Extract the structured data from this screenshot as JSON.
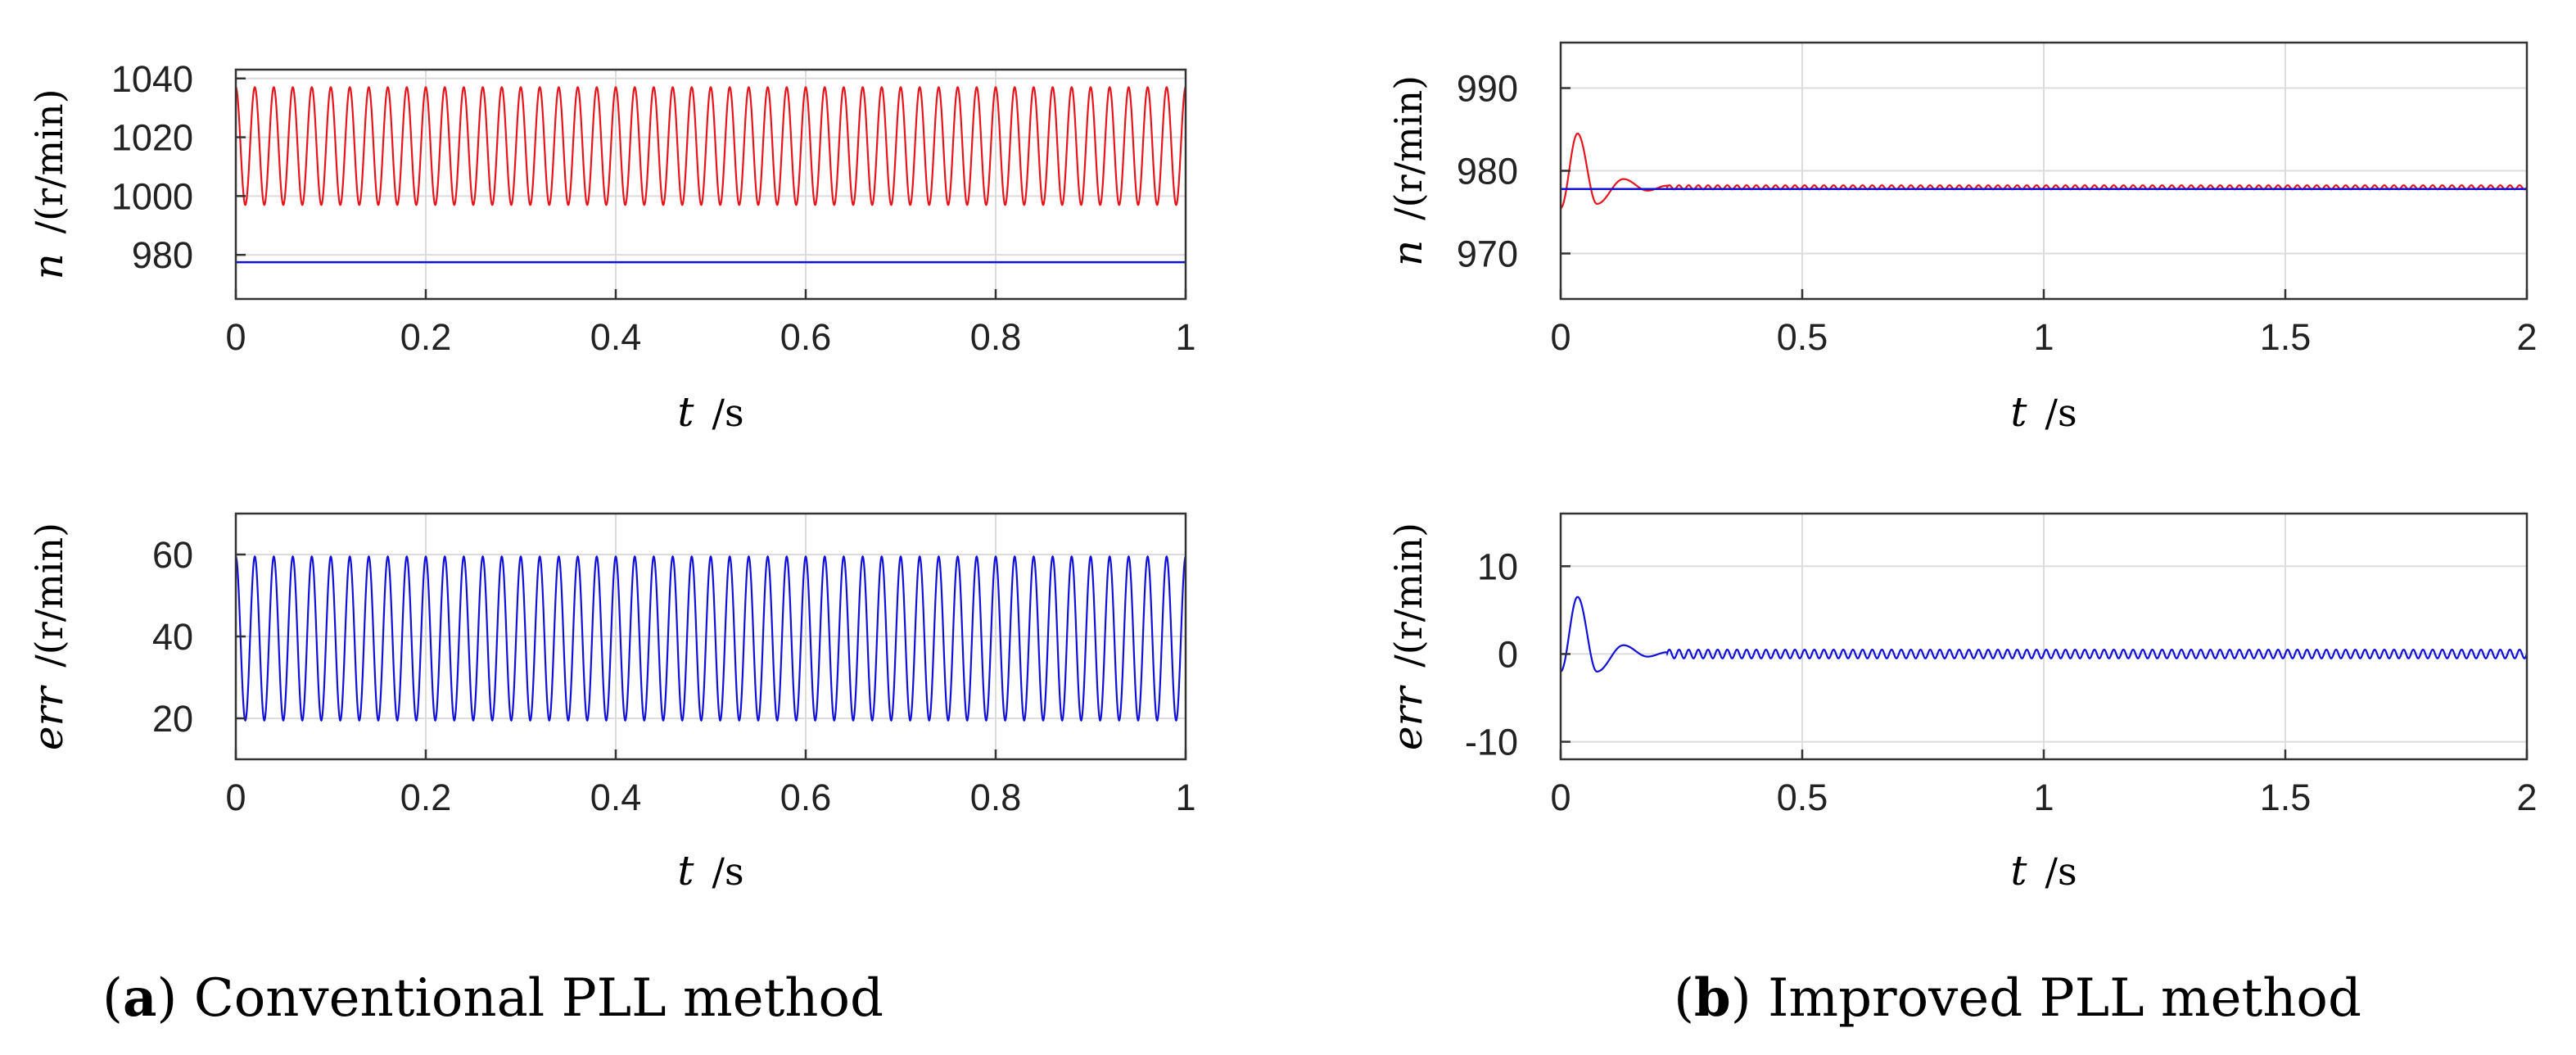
{
  "colors": {
    "red": "#e8141c",
    "blue": "#1010d8",
    "grid": "#dcdcdc"
  },
  "panels": [
    {
      "letter": "a",
      "title": "Conventional PLL method"
    },
    {
      "letter": "b",
      "title": "Improved PLL method"
    }
  ],
  "chart_data": [
    {
      "id": "a-top",
      "type": "line",
      "xlabel": {
        "italic": "t",
        "unit": "/s"
      },
      "ylabel": {
        "italic": "n",
        "unit": "/(r/min)"
      },
      "xlim": [
        0,
        1
      ],
      "ylim": [
        965,
        1043
      ],
      "xticks": [
        0,
        0.2,
        0.4,
        0.6,
        0.8,
        1
      ],
      "xtick_labels": [
        "0",
        "0.2",
        "0.4",
        "0.6",
        "0.8",
        "1"
      ],
      "yticks": [
        980,
        1000,
        1020,
        1040
      ],
      "ytick_labels": [
        "980",
        "1000",
        "1020",
        "1040"
      ],
      "grid": true,
      "series": [
        {
          "color": "red",
          "kind": "sine",
          "mean": 1017,
          "amplitude": 20,
          "cycles": 50,
          "phase": 0.25
        },
        {
          "color": "blue",
          "kind": "constant",
          "value": 977.5
        }
      ]
    },
    {
      "id": "b-top",
      "type": "line",
      "xlabel": {
        "italic": "t",
        "unit": "/s"
      },
      "ylabel": {
        "italic": "n",
        "unit": "/(r/min)"
      },
      "xlim": [
        0,
        2
      ],
      "ylim": [
        964.5,
        995.5
      ],
      "xticks": [
        0,
        0.5,
        1,
        1.5,
        2
      ],
      "xtick_labels": [
        "0",
        "0.5",
        "1",
        "1.5",
        "2"
      ],
      "yticks": [
        970,
        980,
        990
      ],
      "ytick_labels": [
        "970",
        "980",
        "990"
      ],
      "grid": true,
      "series": [
        {
          "color": "red",
          "kind": "transient",
          "settle": 978.0,
          "start": 975.5,
          "points": [
            [
              0.035,
              984.5
            ],
            [
              0.075,
              976.0
            ],
            [
              0.13,
              979.0
            ],
            [
              0.18,
              977.6
            ],
            [
              0.22,
              978.2
            ]
          ],
          "ripple": 0.25,
          "ripple_cycles": 100
        },
        {
          "color": "blue",
          "kind": "constant",
          "value": 977.8
        }
      ]
    },
    {
      "id": "a-bottom",
      "type": "line",
      "xlabel": {
        "italic": "t",
        "unit": "/s"
      },
      "ylabel": {
        "italic": "err",
        "unit": "/(r/min)"
      },
      "xlim": [
        0,
        1
      ],
      "ylim": [
        10,
        70
      ],
      "xticks": [
        0,
        0.2,
        0.4,
        0.6,
        0.8,
        1
      ],
      "xtick_labels": [
        "0",
        "0.2",
        "0.4",
        "0.6",
        "0.8",
        "1"
      ],
      "yticks": [
        20,
        40,
        60
      ],
      "ytick_labels": [
        "20",
        "40",
        "60"
      ],
      "grid": true,
      "series": [
        {
          "color": "blue",
          "kind": "sine",
          "mean": 39.5,
          "amplitude": 20,
          "cycles": 50,
          "phase": 0.25
        }
      ]
    },
    {
      "id": "b-bottom",
      "type": "line",
      "xlabel": {
        "italic": "t",
        "unit": "/s"
      },
      "ylabel": {
        "italic": "err",
        "unit": "/(r/min)"
      },
      "xlim": [
        0,
        2
      ],
      "ylim": [
        -12,
        16
      ],
      "xticks": [
        0,
        0.5,
        1,
        1.5,
        2
      ],
      "xtick_labels": [
        "0",
        "0.5",
        "1",
        "1.5",
        "2"
      ],
      "yticks": [
        -10,
        0,
        10
      ],
      "ytick_labels": [
        "-10",
        "0",
        "10"
      ],
      "grid": true,
      "series": [
        {
          "color": "blue",
          "kind": "transient",
          "settle": 0.0,
          "start": -2.0,
          "points": [
            [
              0.035,
              6.5
            ],
            [
              0.075,
              -2.0
            ],
            [
              0.13,
              1.0
            ],
            [
              0.18,
              -0.3
            ],
            [
              0.22,
              0.2
            ]
          ],
          "ripple": 0.5,
          "ripple_cycles": 100
        }
      ]
    }
  ]
}
